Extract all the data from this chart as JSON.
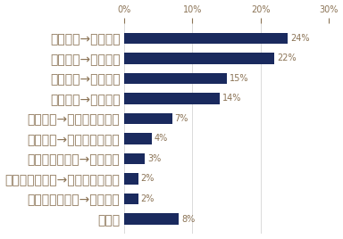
{
  "categories": [
    "その他",
    "ベンチャー企業→大手企業",
    "ベンチャー企業→ベンチャー企業",
    "ベンチャー企業→中小企業",
    "中小企業→ベンチャー企業",
    "大手企業→ベンチャー企業",
    "中小企業→大手企業",
    "大手企業→大手企業",
    "大手企業→中小企業",
    "中小企業→中小企業"
  ],
  "values": [
    8,
    2,
    2,
    3,
    4,
    7,
    14,
    15,
    22,
    24
  ],
  "bar_color": "#1a2a5e",
  "label_color": "#8B7355",
  "axis_label_color": "#8B7355",
  "tick_color": "#8B7355",
  "xlim": [
    0,
    30
  ],
  "xticks": [
    0,
    10,
    20,
    30
  ],
  "background_color": "#ffffff",
  "bar_height": 0.55,
  "fontsize": 7.0,
  "value_fontsize": 7.0
}
